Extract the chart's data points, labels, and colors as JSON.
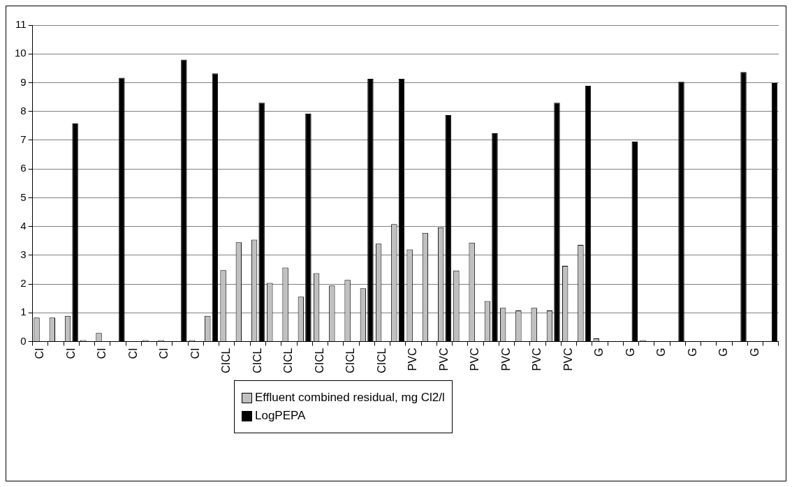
{
  "chart_data": {
    "type": "bar",
    "categories": [
      "CI",
      null,
      "CI",
      null,
      "CI",
      null,
      "CI",
      null,
      "CI",
      null,
      "CI",
      null,
      "CICL",
      null,
      "CICL",
      null,
      "CICL",
      null,
      "CICL",
      null,
      "CICL",
      null,
      "CICL",
      null,
      "PVC",
      null,
      "PVC",
      null,
      "PVC",
      null,
      "PVC",
      null,
      "PVC",
      null,
      "PVC",
      null,
      "G",
      null,
      "G",
      null,
      "G",
      null,
      "G",
      null,
      "G",
      null,
      "G",
      null
    ],
    "series": [
      {
        "name": "Effluent combined residual, mg Cl2/l",
        "color": "#c0c0c0",
        "values": [
          0.83,
          0.83,
          0.89,
          0.05,
          0.3,
          null,
          null,
          0.05,
          0.05,
          null,
          0.05,
          0.89,
          2.48,
          3.45,
          3.54,
          2.04,
          2.57,
          1.56,
          2.38,
          1.95,
          2.14,
          1.85,
          3.4,
          4.08,
          3.2,
          3.78,
          3.97,
          2.47,
          3.44,
          1.41,
          1.17,
          1.08,
          1.17,
          1.08,
          2.63,
          3.36,
          0.11,
          null,
          null,
          0.05,
          null,
          null,
          null,
          null,
          null,
          null,
          null,
          null
        ]
      },
      {
        "name": "LogPEPA",
        "color": "#000000",
        "values": [
          null,
          null,
          7.58,
          null,
          null,
          9.17,
          null,
          null,
          null,
          9.8,
          null,
          9.32,
          null,
          null,
          8.3,
          null,
          null,
          7.92,
          null,
          null,
          null,
          9.13,
          null,
          9.13,
          null,
          null,
          7.87,
          null,
          null,
          7.24,
          null,
          null,
          null,
          8.3,
          null,
          8.89,
          null,
          null,
          6.95,
          null,
          null,
          9.03,
          null,
          null,
          null,
          9.37,
          null,
          8.99
        ]
      }
    ],
    "ylim": [
      0,
      11
    ],
    "yticks": [
      0,
      1,
      2,
      3,
      4,
      5,
      6,
      7,
      8,
      9,
      10,
      11
    ],
    "grid": "y",
    "legend": "bottom"
  }
}
